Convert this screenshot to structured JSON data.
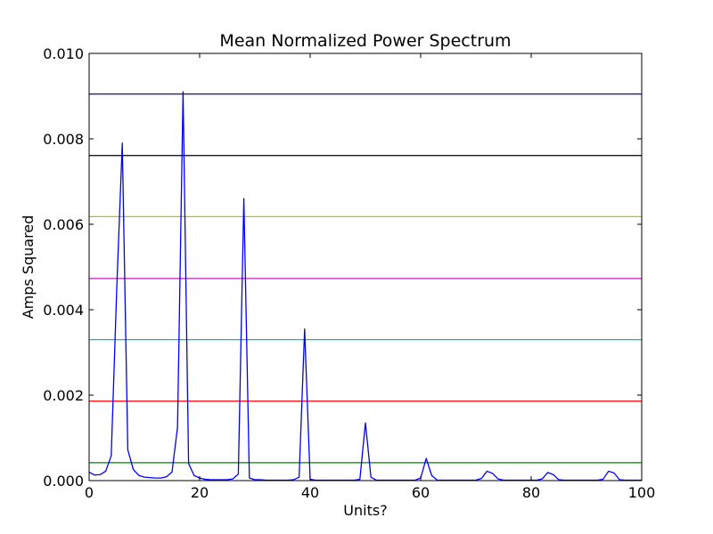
{
  "chart_data": {
    "type": "line",
    "title": "Mean Normalized Power Spectrum",
    "xlabel": "Units?",
    "ylabel": "Amps Squared",
    "xlim": [
      0,
      100
    ],
    "ylim": [
      0,
      0.01
    ],
    "x_ticks": [
      0,
      20,
      40,
      60,
      80,
      100
    ],
    "y_ticks": [
      0.0,
      0.002,
      0.004,
      0.006,
      0.008,
      0.01
    ],
    "x_tick_labels": [
      "0",
      "20",
      "40",
      "60",
      "80",
      "100"
    ],
    "y_tick_labels": [
      "0.000",
      "0.002",
      "0.004",
      "0.006",
      "0.008",
      "0.010"
    ],
    "grid": false,
    "series": [
      {
        "color": "#0000ff",
        "x": [
          0,
          1,
          2,
          3,
          4,
          5,
          6,
          7,
          8,
          9,
          10,
          11,
          12,
          13,
          14,
          15,
          16,
          17,
          18,
          19,
          20,
          21,
          22,
          23,
          24,
          25,
          26,
          27,
          28,
          29,
          30,
          31,
          32,
          33,
          34,
          35,
          36,
          37,
          38,
          39,
          40,
          41,
          42,
          43,
          44,
          45,
          46,
          47,
          48,
          49,
          50,
          51,
          52,
          53,
          54,
          55,
          56,
          57,
          58,
          59,
          60,
          61,
          62,
          63,
          64,
          65,
          66,
          67,
          68,
          69,
          70,
          71,
          72,
          73,
          74,
          75,
          76,
          77,
          78,
          79,
          80,
          81,
          82,
          83,
          84,
          85,
          86,
          87,
          88,
          89,
          90,
          91,
          92,
          93,
          94,
          95,
          96,
          97,
          98,
          99,
          100
        ],
        "values": [
          0.0002,
          0.00013,
          0.00014,
          0.00022,
          0.00058,
          0.0045,
          0.0079,
          0.00072,
          0.00026,
          0.00012,
          8e-05,
          7e-05,
          6e-05,
          6e-05,
          9e-05,
          0.0002,
          0.00125,
          0.0091,
          0.0004,
          0.00012,
          6e-05,
          3e-05,
          2e-05,
          2e-05,
          2e-05,
          2e-05,
          4e-05,
          0.00015,
          0.0066,
          6e-05,
          2e-05,
          2e-05,
          1e-05,
          1e-05,
          1e-05,
          1e-05,
          1e-05,
          2e-05,
          8e-05,
          0.00355,
          3e-05,
          1e-05,
          1e-05,
          1e-05,
          1e-05,
          1e-05,
          1e-05,
          1e-05,
          1e-05,
          3e-05,
          0.00135,
          8e-05,
          1e-05,
          1e-05,
          1e-05,
          1e-05,
          1e-05,
          1e-05,
          1e-05,
          1e-05,
          6e-05,
          0.00052,
          0.00012,
          1e-05,
          1e-05,
          1e-05,
          1e-05,
          1e-05,
          1e-05,
          1e-05,
          1e-05,
          5e-05,
          0.00022,
          0.00017,
          4e-05,
          1e-05,
          1e-05,
          1e-05,
          1e-05,
          1e-05,
          1e-05,
          1e-05,
          4e-05,
          0.00019,
          0.00014,
          2e-05,
          1e-05,
          1e-05,
          1e-05,
          1e-05,
          1e-05,
          1e-05,
          1e-05,
          3e-05,
          0.00022,
          0.00018,
          2e-05,
          1e-05,
          1e-05,
          1e-05,
          1e-05
        ]
      }
    ],
    "hlines": [
      {
        "color": "#0000ff",
        "y": 0.00905
      },
      {
        "color": "#000000",
        "y": 0.00761
      },
      {
        "color": "#bfbf00",
        "y": 0.00618
      },
      {
        "color": "#bf00bf",
        "y": 0.00473
      },
      {
        "color": "#00bfbf",
        "y": 0.0033
      },
      {
        "color": "#ff0000",
        "y": 0.00186
      },
      {
        "color": "#008000",
        "y": 0.00042
      }
    ]
  }
}
